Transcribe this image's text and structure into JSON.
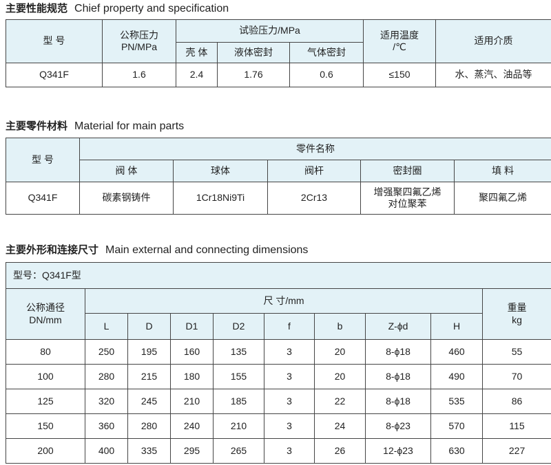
{
  "section1": {
    "title_cn": "主要性能规范",
    "title_en": "Chief property and specification",
    "headers": {
      "model": "型  号",
      "nominal_pressure": "公称压力",
      "nominal_unit": "PN/MPa",
      "test_pressure": "试验压力/MPa",
      "shell": "壳 体",
      "liquid_seal": "液体密封",
      "gas_seal": "气体密封",
      "temp": "适用温度",
      "temp_unit": "/℃",
      "medium": "适用介质"
    },
    "row": {
      "model": "Q341F",
      "pn": "1.6",
      "shell": "2.4",
      "liquid": "1.76",
      "gas": "0.6",
      "temp": "≤150",
      "medium": "水、蒸汽、油品等"
    }
  },
  "section2": {
    "title_cn": "主要零件材料",
    "title_en": "Material for main parts",
    "headers": {
      "model": "型 号",
      "part_name": "零件名称",
      "body": "阀  体",
      "ball": "球体",
      "stem": "阀杆",
      "seal": "密封圈",
      "packing": "填    料"
    },
    "row": {
      "model": "Q341F",
      "body": "碳素钢铸件",
      "ball": "1Cr18Ni9Ti",
      "stem": "2Cr13",
      "seal_1": "增强聚四氟乙烯",
      "seal_2": "对位聚苯",
      "packing": "聚四氟乙烯"
    }
  },
  "section3": {
    "title_cn": "主要外形和连接尺寸",
    "title_en": "Main external and connecting dimensions",
    "model_label": "型号：Q341F型",
    "headers": {
      "dn": "公称通径",
      "dn_unit": "DN/mm",
      "size": "尺    寸/mm",
      "weight": "重量",
      "weight_unit": "kg",
      "cols": [
        "L",
        "D",
        "D1",
        "D2",
        "f",
        "b",
        "Z-ϕd",
        "H"
      ]
    },
    "rows": [
      [
        "80",
        "250",
        "195",
        "160",
        "135",
        "3",
        "20",
        "8-ϕ18",
        "460",
        "55"
      ],
      [
        "100",
        "280",
        "215",
        "180",
        "155",
        "3",
        "20",
        "8-ϕ18",
        "490",
        "70"
      ],
      [
        "125",
        "320",
        "245",
        "210",
        "185",
        "3",
        "22",
        "8-ϕ18",
        "535",
        "86"
      ],
      [
        "150",
        "360",
        "280",
        "240",
        "210",
        "3",
        "24",
        "8-ϕ23",
        "570",
        "115"
      ],
      [
        "200",
        "400",
        "335",
        "295",
        "265",
        "3",
        "26",
        "12-ϕ23",
        "630",
        "227"
      ]
    ]
  }
}
